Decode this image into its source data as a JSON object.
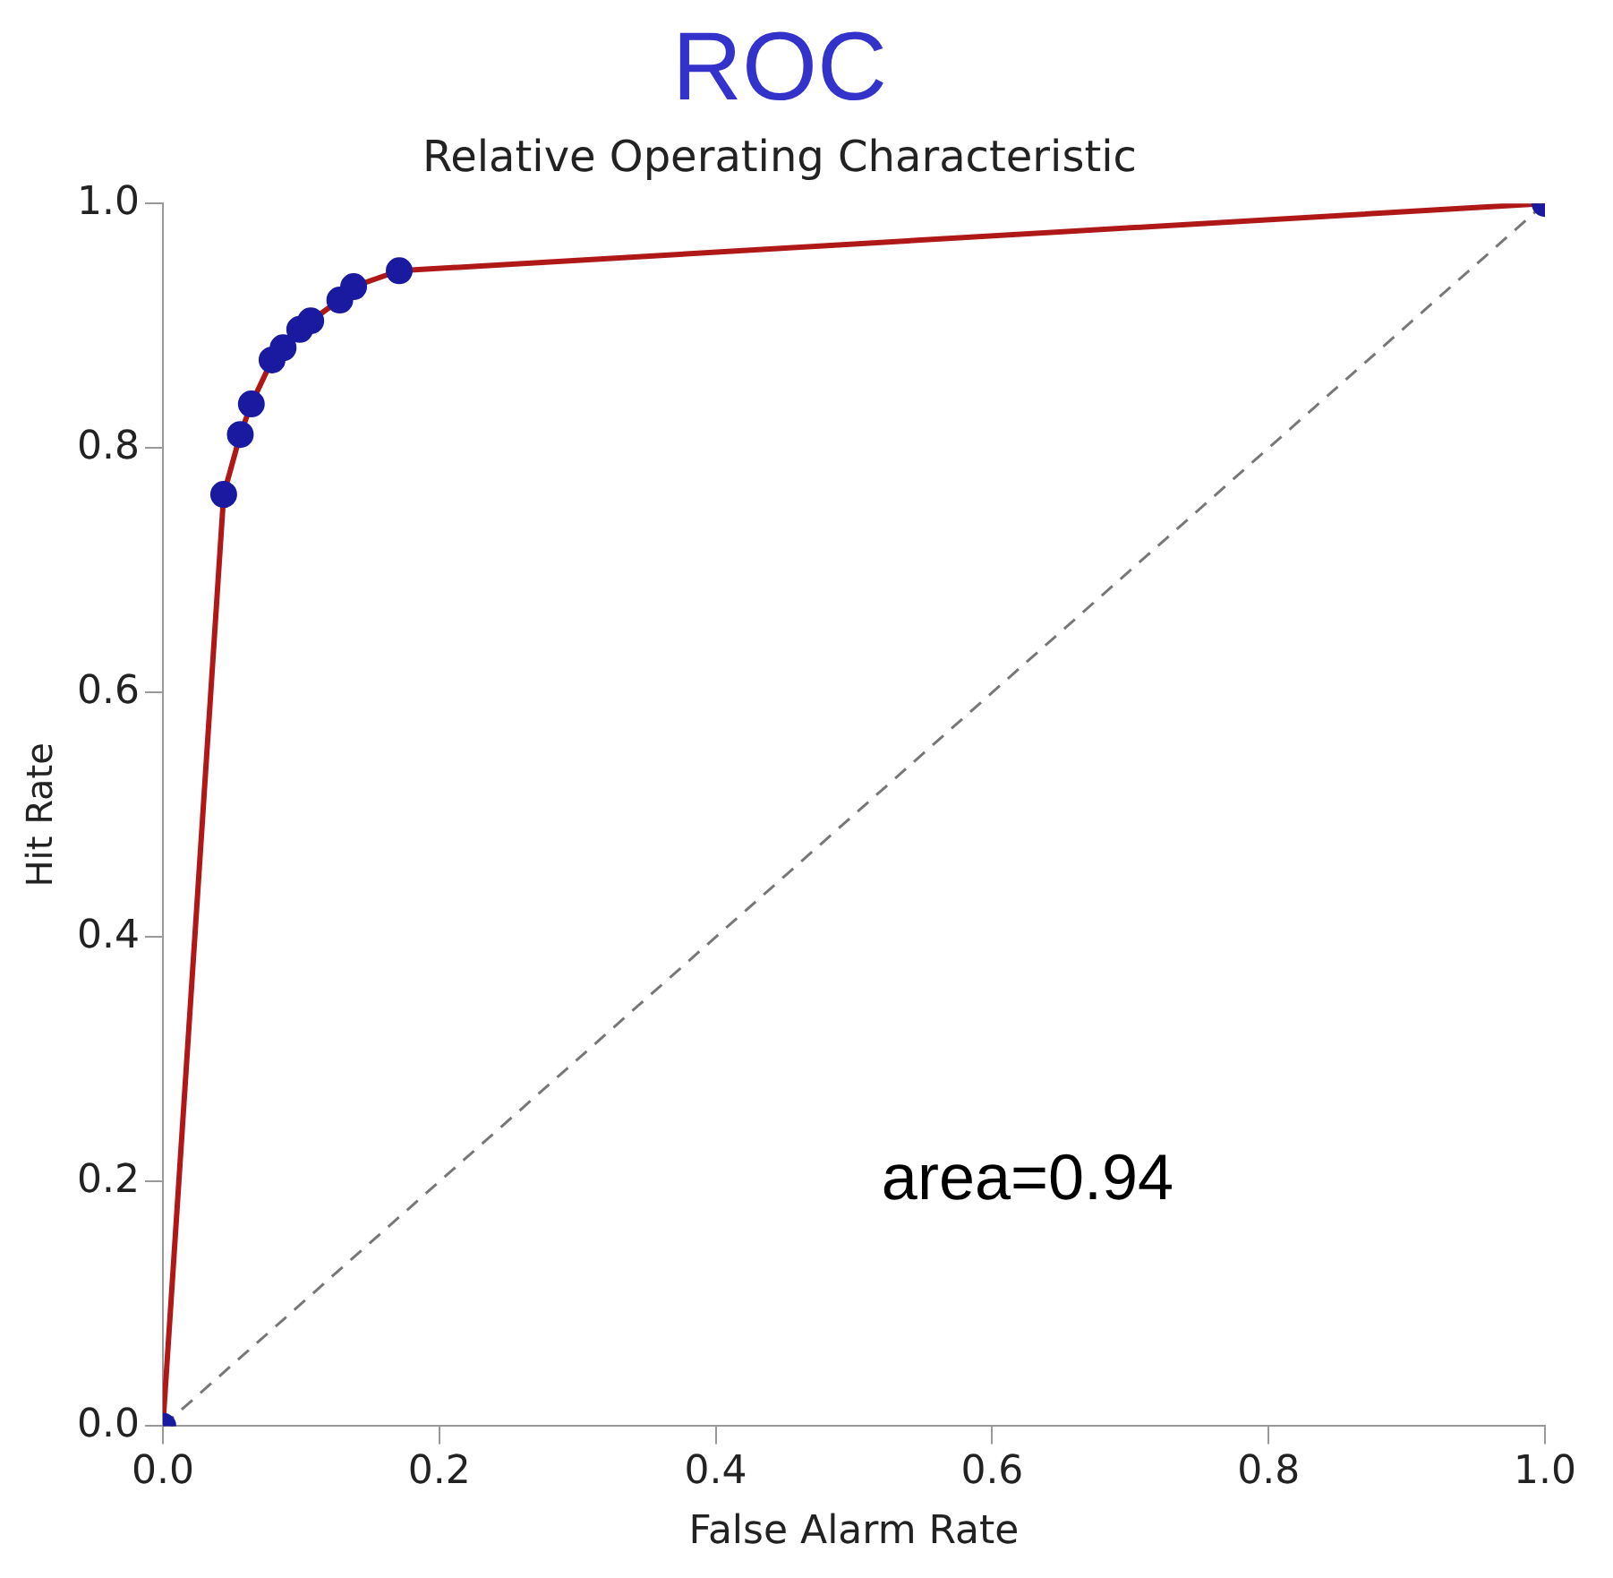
{
  "chart_data": {
    "type": "line",
    "title": "ROC",
    "subtitle": "Relative Operating Characteristic",
    "xlabel": "False Alarm Rate",
    "ylabel": "Hit Rate",
    "xlim": [
      0,
      1
    ],
    "ylim": [
      0,
      1
    ],
    "xticks": [
      {
        "value": 0,
        "label": "0.0"
      },
      {
        "value": 0.2,
        "label": "0.2"
      },
      {
        "value": 0.4,
        "label": "0.4"
      },
      {
        "value": 0.6,
        "label": "0.6"
      },
      {
        "value": 0.8,
        "label": "0.8"
      },
      {
        "value": 1,
        "label": "1.0"
      }
    ],
    "yticks": [
      {
        "value": 0,
        "label": "0.0"
      },
      {
        "value": 0.2,
        "label": "0.2"
      },
      {
        "value": 0.4,
        "label": "0.4"
      },
      {
        "value": 0.6,
        "label": "0.6"
      },
      {
        "value": 0.8,
        "label": "0.8"
      },
      {
        "value": 1,
        "label": "1.0"
      }
    ],
    "grid": false,
    "legend": false,
    "series": [
      {
        "type": "line",
        "color": "#b01818",
        "marker": "circle",
        "line_style": "solid",
        "colors": [
          "#1a1aa0",
          "#1a1aa0",
          "#1a1aa0",
          "#1a1aa0",
          "#1a1aa0",
          "#1a1aa0",
          "#1a1aa0",
          "#1a1aa0",
          "#1a1aa0",
          "#1a1aa0",
          "#1a1aa0",
          "#1a1aa0"
        ],
        "x": [
          0,
          0.044,
          0.056,
          0.064,
          0.079,
          0.087,
          0.099,
          0.107,
          0.128,
          0.138,
          0.171,
          1
        ],
        "values": [
          0,
          0.762,
          0.811,
          0.836,
          0.872,
          0.882,
          0.897,
          0.904,
          0.921,
          0.932,
          0.945,
          1
        ]
      },
      {
        "type": "line",
        "color": "#777777",
        "marker": "none",
        "line_style": "dashed",
        "x": [
          0,
          1
        ],
        "values": [
          0,
          1
        ]
      }
    ],
    "annotations": [
      "area=0.94"
    ]
  }
}
